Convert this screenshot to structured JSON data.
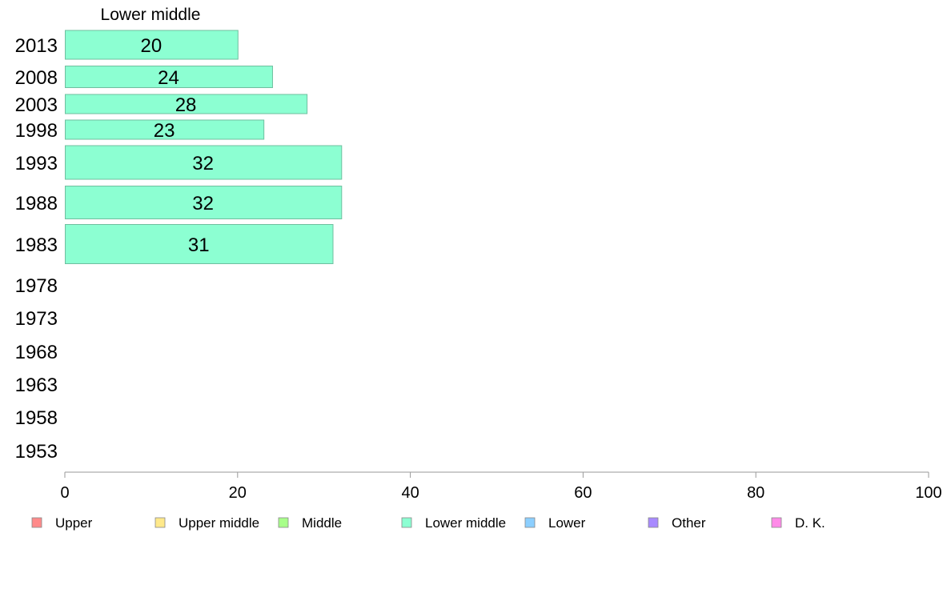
{
  "chart_data": {
    "type": "bar",
    "orientation": "horizontal",
    "title": "Lower middle",
    "xlabel": "",
    "ylabel": "",
    "xlim": [
      0,
      100
    ],
    "x_ticks": [
      0,
      20,
      40,
      60,
      80,
      100
    ],
    "grid": false,
    "categories": [
      "2013",
      "2008",
      "2003",
      "1998",
      "1993",
      "1988",
      "1983",
      "1978",
      "1973",
      "1968",
      "1963",
      "1958",
      "1953"
    ],
    "series": [
      {
        "name": "Lower middle",
        "color": "#8cffd2",
        "values": [
          20,
          24,
          28,
          23,
          32,
          32,
          31,
          null,
          null,
          null,
          null,
          null,
          null
        ],
        "value_labels": [
          "20",
          "24",
          "28",
          "23",
          "32",
          "32",
          "31",
          "",
          "",
          "",
          "",
          "",
          ""
        ]
      }
    ],
    "legend_placement": "bottom",
    "legend": [
      {
        "label": "Upper",
        "color": "#ff8a8a"
      },
      {
        "label": "Upper middle",
        "color": "#ffe98a"
      },
      {
        "label": "Middle",
        "color": "#a8ff8a"
      },
      {
        "label": "Lower middle",
        "color": "#8cffd2"
      },
      {
        "label": "Lower",
        "color": "#8ccfff"
      },
      {
        "label": "Other",
        "color": "#a88aff"
      },
      {
        "label": "D. K.",
        "color": "#ff8ae8"
      }
    ]
  }
}
